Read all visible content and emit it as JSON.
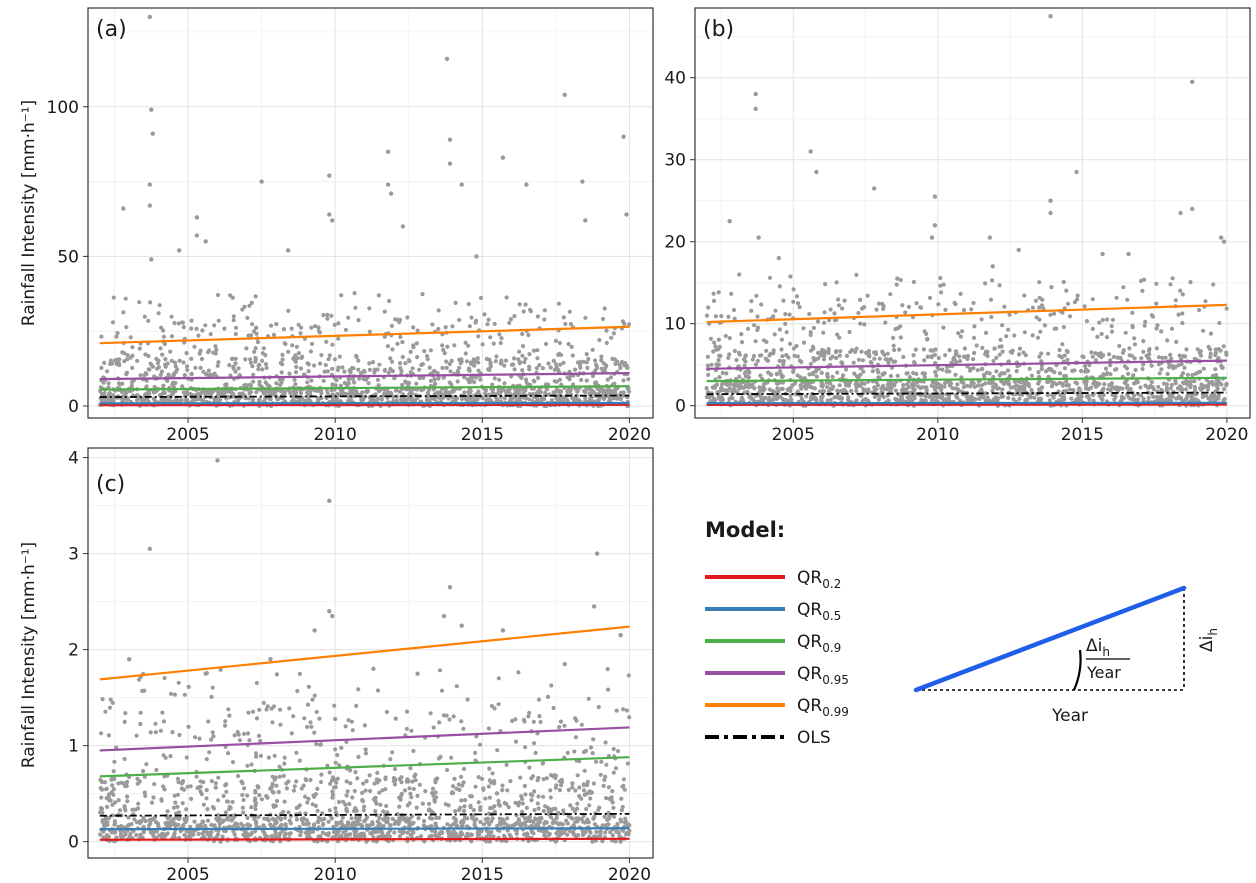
{
  "figure": {
    "y_axis_label": "Rainfall Intensity [mm·h⁻¹]",
    "legend": {
      "title": "Model:",
      "items": [
        {
          "base": "QR",
          "sub": "0.2",
          "color": "#e41a1c",
          "dash": "solid"
        },
        {
          "base": "QR",
          "sub": "0.5",
          "color": "#377eb8",
          "dash": "solid"
        },
        {
          "base": "QR",
          "sub": "0.9",
          "color": "#4daf4a",
          "dash": "solid"
        },
        {
          "base": "QR",
          "sub": "0.95",
          "color": "#984ea3",
          "dash": "solid"
        },
        {
          "base": "QR",
          "sub": "0.99",
          "color": "#ff7f00",
          "dash": "solid"
        },
        {
          "base": "OLS",
          "sub": "",
          "color": "#000000",
          "dash": "dashdot"
        }
      ]
    },
    "slope_diagram": {
      "numerator": "Δi",
      "numerator_sub": "h",
      "denominator": "Year",
      "x_label": "Year",
      "y_label": "Δi",
      "y_label_sub": "h",
      "line_color": "#1f5ee8"
    },
    "point_color": "#9a9a9a"
  },
  "chart_data": [
    {
      "panel": "(a)",
      "type": "scatter",
      "x_label": "",
      "xlim": [
        2001.6,
        2020.8
      ],
      "ylim": [
        -4,
        133
      ],
      "x_ticks": [
        2005,
        2010,
        2015,
        2020
      ],
      "y_ticks": [
        0,
        50,
        100
      ],
      "grid": true,
      "scatter": {
        "x_range": [
          2002,
          2020
        ],
        "outliers": [
          [
            2003.7,
            130
          ],
          [
            2003.75,
            99
          ],
          [
            2003.8,
            91
          ],
          [
            2003.7,
            74
          ],
          [
            2003.7,
            67
          ],
          [
            2003.75,
            49
          ],
          [
            2002.8,
            66
          ],
          [
            2004.7,
            52
          ],
          [
            2005.3,
            63
          ],
          [
            2005.6,
            55
          ],
          [
            2007.5,
            75
          ],
          [
            2009.8,
            77
          ],
          [
            2009.8,
            64
          ],
          [
            2009.9,
            62
          ],
          [
            2011.8,
            85
          ],
          [
            2011.8,
            74
          ],
          [
            2011.9,
            71
          ],
          [
            2013.8,
            116
          ],
          [
            2013.9,
            89
          ],
          [
            2013.9,
            81
          ],
          [
            2014.3,
            74
          ],
          [
            2015.7,
            83
          ],
          [
            2016.5,
            74
          ],
          [
            2017.8,
            104
          ],
          [
            2018.4,
            75
          ],
          [
            2018.5,
            62
          ],
          [
            2019.8,
            90
          ],
          [
            2019.9,
            64
          ],
          [
            2005.3,
            57
          ],
          [
            2008.4,
            52
          ],
          [
            2012.3,
            60
          ],
          [
            2014.8,
            50
          ]
        ],
        "bulk_density": [
          0,
          6,
          16,
          30
        ],
        "bulk_ymax": 38
      },
      "series": [
        {
          "model": "QR0.2",
          "x": [
            2002,
            2020
          ],
          "y": [
            0.3,
            0.4
          ]
        },
        {
          "model": "QR0.5",
          "x": [
            2002,
            2020
          ],
          "y": [
            0.9,
            1.0
          ]
        },
        {
          "model": "QR0.9",
          "x": [
            2002,
            2020
          ],
          "y": [
            5.5,
            6.6
          ]
        },
        {
          "model": "QR0.95",
          "x": [
            2002,
            2020
          ],
          "y": [
            9.0,
            11.0
          ]
        },
        {
          "model": "QR0.99",
          "x": [
            2002,
            2020
          ],
          "y": [
            21.0,
            26.5
          ]
        },
        {
          "model": "OLS",
          "x": [
            2002,
            2020
          ],
          "y": [
            3.0,
            3.5
          ]
        }
      ]
    },
    {
      "panel": "(b)",
      "type": "scatter",
      "x_label": "",
      "xlim": [
        2001.6,
        2020.8
      ],
      "ylim": [
        -1.5,
        48.5
      ],
      "x_ticks": [
        2005,
        2010,
        2015,
        2020
      ],
      "y_ticks": [
        0,
        10,
        20,
        30,
        40
      ],
      "grid": true,
      "scatter": {
        "x_range": [
          2002,
          2020
        ],
        "outliers": [
          [
            2003.7,
            38
          ],
          [
            2003.7,
            36.2
          ],
          [
            2003.8,
            20.5
          ],
          [
            2002.8,
            22.5
          ],
          [
            2004.5,
            18
          ],
          [
            2005.6,
            31
          ],
          [
            2005.8,
            28.5
          ],
          [
            2007.8,
            26.5
          ],
          [
            2009.9,
            25.5
          ],
          [
            2009.9,
            22
          ],
          [
            2009.8,
            20.5
          ],
          [
            2011.8,
            20.5
          ],
          [
            2011.9,
            17
          ],
          [
            2013.9,
            47.5
          ],
          [
            2013.9,
            25
          ],
          [
            2013.9,
            23.5
          ],
          [
            2014.8,
            28.5
          ],
          [
            2015.7,
            18.5
          ],
          [
            2018.4,
            23.5
          ],
          [
            2018.8,
            39.5
          ],
          [
            2018.8,
            24
          ],
          [
            2019.8,
            20.5
          ],
          [
            2019.9,
            20
          ],
          [
            2016.6,
            18.5
          ],
          [
            2012.8,
            19
          ],
          [
            2008.6,
            15.5
          ]
        ],
        "bulk_density": [
          0,
          3,
          7,
          13
        ],
        "bulk_ymax": 16
      },
      "series": [
        {
          "model": "QR0.2",
          "x": [
            2002,
            2020
          ],
          "y": [
            0.1,
            0.15
          ]
        },
        {
          "model": "QR0.5",
          "x": [
            2002,
            2020
          ],
          "y": [
            0.3,
            0.35
          ]
        },
        {
          "model": "QR0.9",
          "x": [
            2002,
            2020
          ],
          "y": [
            3.0,
            3.4
          ]
        },
        {
          "model": "QR0.95",
          "x": [
            2002,
            2020
          ],
          "y": [
            4.5,
            5.5
          ]
        },
        {
          "model": "QR0.99",
          "x": [
            2002,
            2020
          ],
          "y": [
            10.2,
            12.3
          ]
        },
        {
          "model": "OLS",
          "x": [
            2002,
            2020
          ],
          "y": [
            1.4,
            1.6
          ]
        }
      ]
    },
    {
      "panel": "(c)",
      "type": "scatter",
      "x_label": "",
      "xlim": [
        2001.6,
        2020.8
      ],
      "ylim": [
        -0.17,
        4.1
      ],
      "x_ticks": [
        2005,
        2010,
        2015,
        2020
      ],
      "y_ticks": [
        0,
        1,
        2,
        3,
        4
      ],
      "grid": true,
      "scatter": {
        "x_range": [
          2002,
          2020
        ],
        "outliers": [
          [
            2006.0,
            3.97
          ],
          [
            2003.7,
            3.05
          ],
          [
            2003.0,
            1.9
          ],
          [
            2009.8,
            3.55
          ],
          [
            2009.8,
            2.4
          ],
          [
            2009.9,
            2.35
          ],
          [
            2013.9,
            2.65
          ],
          [
            2014.3,
            2.25
          ],
          [
            2013.7,
            2.35
          ],
          [
            2015.7,
            2.2
          ],
          [
            2018.9,
            3.0
          ],
          [
            2018.8,
            2.45
          ],
          [
            2019.7,
            2.15
          ],
          [
            2009.3,
            2.2
          ],
          [
            2007.8,
            1.9
          ],
          [
            2011.3,
            1.8
          ],
          [
            2017.8,
            1.85
          ],
          [
            2005.6,
            1.75
          ],
          [
            2012.8,
            1.75
          ]
        ],
        "bulk_density": [
          0,
          0.25,
          0.7,
          1.4
        ],
        "bulk_ymax": 1.8
      },
      "series": [
        {
          "model": "QR0.2",
          "x": [
            2002,
            2020
          ],
          "y": [
            0.02,
            0.03
          ]
        },
        {
          "model": "QR0.5",
          "x": [
            2002,
            2020
          ],
          "y": [
            0.13,
            0.14
          ]
        },
        {
          "model": "QR0.9",
          "x": [
            2002,
            2020
          ],
          "y": [
            0.68,
            0.88
          ]
        },
        {
          "model": "QR0.95",
          "x": [
            2002,
            2020
          ],
          "y": [
            0.95,
            1.19
          ]
        },
        {
          "model": "QR0.99",
          "x": [
            2002,
            2020
          ],
          "y": [
            1.69,
            2.24
          ]
        },
        {
          "model": "OLS",
          "x": [
            2002,
            2020
          ],
          "y": [
            0.27,
            0.29
          ]
        }
      ]
    }
  ]
}
